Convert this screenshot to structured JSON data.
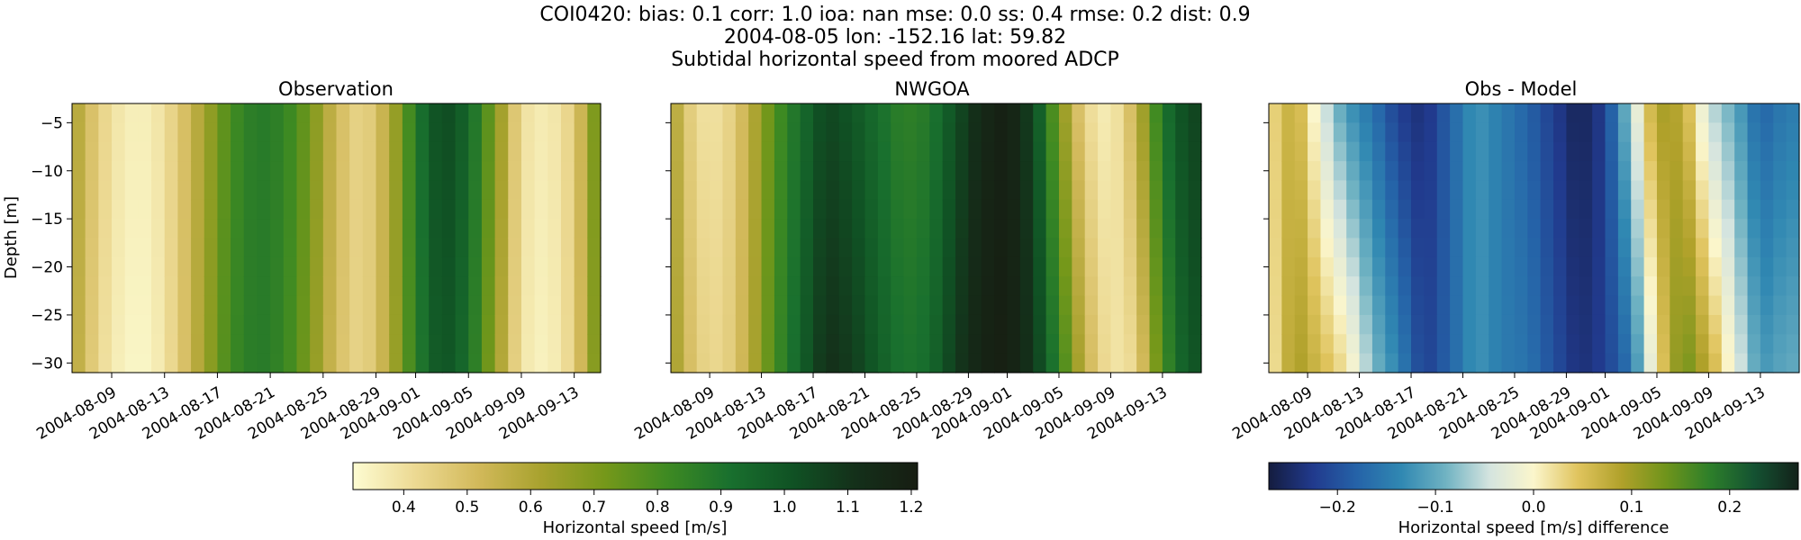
{
  "header": {
    "line1": "COI0420: bias: 0.1  corr: 1.0  ioa: nan  mse: 0.0  ss: 0.4  rmse: 0.2  dist: 0.9",
    "line2": "2004-08-05 lon: -152.16 lat: 59.82",
    "line3": "Subtidal horizontal speed from moored ADCP"
  },
  "colors": {
    "speed_cmap": [
      "#fdfcd2",
      "#ecd992",
      "#d2b95a",
      "#a8a22e",
      "#76981a",
      "#3e8a22",
      "#19702e",
      "#105224",
      "#14301a",
      "#171d12"
    ],
    "diff_cmap": [
      "#141c3f",
      "#213a8d",
      "#2563a8",
      "#3088b2",
      "#6fb2c2",
      "#d4e4df",
      "#fbf6cc",
      "#e0c45e",
      "#b0a12a",
      "#6f941b",
      "#2d7f2a",
      "#145232",
      "#13221a"
    ]
  },
  "chart_data": [
    {
      "type": "heatmap",
      "title": "Observation",
      "ylabel": "Depth [m]",
      "xlabel": "",
      "x_range": [
        "2004-08-06",
        "2004-09-15"
      ],
      "ylim": [
        -31,
        -3
      ],
      "x_ticks": [
        "2004-08-09",
        "2004-08-13",
        "2004-08-17",
        "2004-08-21",
        "2004-08-25",
        "2004-08-29",
        "2004-09-01",
        "2004-09-05",
        "2004-09-09",
        "2004-09-13"
      ],
      "y_ticks": [
        -5,
        -10,
        -15,
        -20,
        -25,
        -30
      ],
      "depth_profile": {
        "dates": [
          "2004-08-06",
          "2004-08-08",
          "2004-08-10",
          "2004-08-12",
          "2004-08-14",
          "2004-08-16",
          "2004-08-18",
          "2004-08-20",
          "2004-08-22",
          "2004-08-24",
          "2004-08-26",
          "2004-08-28",
          "2004-08-30",
          "2004-09-01",
          "2004-09-03",
          "2004-09-05",
          "2004-09-07",
          "2004-09-09",
          "2004-09-11",
          "2004-09-13",
          "2004-09-15"
        ],
        "surface": [
          0.62,
          0.45,
          0.36,
          0.36,
          0.46,
          0.62,
          0.8,
          0.88,
          0.85,
          0.72,
          0.52,
          0.42,
          0.58,
          0.88,
          1.05,
          0.95,
          0.7,
          0.4,
          0.36,
          0.45,
          0.78
        ],
        "bottom": [
          0.6,
          0.42,
          0.34,
          0.34,
          0.45,
          0.63,
          0.82,
          0.88,
          0.84,
          0.7,
          0.5,
          0.42,
          0.58,
          0.86,
          1.02,
          0.92,
          0.66,
          0.38,
          0.34,
          0.44,
          0.76
        ]
      },
      "colorbar_group": "speed"
    },
    {
      "type": "heatmap",
      "title": "NWGOA",
      "ylabel": "",
      "xlabel": "",
      "x_range": [
        "2004-08-06",
        "2004-09-16"
      ],
      "ylim": [
        -31,
        -3
      ],
      "x_ticks": [
        "2004-08-09",
        "2004-08-13",
        "2004-08-17",
        "2004-08-21",
        "2004-08-25",
        "2004-08-29",
        "2004-09-01",
        "2004-09-05",
        "2004-09-09",
        "2004-09-13"
      ],
      "y_ticks": [
        -5,
        -10,
        -15,
        -20,
        -25,
        -30
      ],
      "depth_profile": {
        "dates": [
          "2004-08-06",
          "2004-08-08",
          "2004-08-10",
          "2004-08-12",
          "2004-08-14",
          "2004-08-16",
          "2004-08-18",
          "2004-08-20",
          "2004-08-22",
          "2004-08-24",
          "2004-08-26",
          "2004-08-28",
          "2004-08-30",
          "2004-09-01",
          "2004-09-03",
          "2004-09-05",
          "2004-09-07",
          "2004-09-09",
          "2004-09-11",
          "2004-09-13",
          "2004-09-15"
        ],
        "surface": [
          0.62,
          0.4,
          0.4,
          0.55,
          0.78,
          0.92,
          1.05,
          1.0,
          0.92,
          0.85,
          0.88,
          1.02,
          1.15,
          1.2,
          1.05,
          0.7,
          0.42,
          0.35,
          0.55,
          0.9,
          1.05
        ],
        "bottom": [
          0.65,
          0.45,
          0.42,
          0.56,
          0.8,
          0.96,
          1.12,
          1.08,
          0.98,
          0.9,
          0.93,
          1.08,
          1.18,
          1.2,
          1.1,
          0.85,
          0.55,
          0.38,
          0.42,
          0.8,
          1.0
        ]
      },
      "colorbar_group": "speed"
    },
    {
      "type": "heatmap",
      "title": "Obs - Model",
      "ylabel": "",
      "xlabel": "",
      "x_range": [
        "2004-08-06",
        "2004-09-16"
      ],
      "ylim": [
        -31,
        -3
      ],
      "x_ticks": [
        "2004-08-09",
        "2004-08-13",
        "2004-08-17",
        "2004-08-21",
        "2004-08-25",
        "2004-08-29",
        "2004-09-01",
        "2004-09-05",
        "2004-09-09",
        "2004-09-13"
      ],
      "y_ticks": [
        -5,
        -10,
        -15,
        -20,
        -25,
        -30
      ],
      "depth_profile": {
        "dates": [
          "2004-08-06",
          "2004-08-08",
          "2004-08-10",
          "2004-08-12",
          "2004-08-14",
          "2004-08-16",
          "2004-08-18",
          "2004-08-20",
          "2004-08-22",
          "2004-08-24",
          "2004-08-26",
          "2004-08-28",
          "2004-08-30",
          "2004-09-01",
          "2004-09-03",
          "2004-09-05",
          "2004-09-07",
          "2004-09-09",
          "2004-09-11",
          "2004-09-13",
          "2004-09-15"
        ],
        "surface": [
          0.02,
          0.08,
          -0.03,
          -0.12,
          -0.16,
          -0.22,
          -0.24,
          -0.18,
          -0.12,
          -0.15,
          -0.18,
          -0.22,
          -0.26,
          -0.22,
          -0.06,
          0.1,
          0.08,
          -0.05,
          -0.1,
          -0.18,
          -0.15
        ],
        "bottom": [
          0.0,
          0.1,
          0.06,
          0.02,
          -0.08,
          -0.14,
          -0.22,
          -0.18,
          -0.12,
          -0.15,
          -0.16,
          -0.2,
          -0.24,
          -0.22,
          -0.16,
          0.02,
          0.14,
          0.08,
          -0.02,
          -0.12,
          -0.1
        ]
      },
      "colorbar_group": "diff"
    }
  ],
  "colorbars": {
    "speed": {
      "label": "Horizontal speed [m/s]",
      "range": [
        0.32,
        1.21
      ],
      "ticks": [
        "0.4",
        "0.5",
        "0.6",
        "0.7",
        "0.8",
        "0.9",
        "1.0",
        "1.1",
        "1.2"
      ]
    },
    "diff": {
      "label": "Horizontal speed [m/s] difference",
      "range": [
        -0.27,
        0.27
      ],
      "ticks": [
        "−0.2",
        "−0.1",
        "0.0",
        "0.1",
        "0.2"
      ]
    }
  }
}
